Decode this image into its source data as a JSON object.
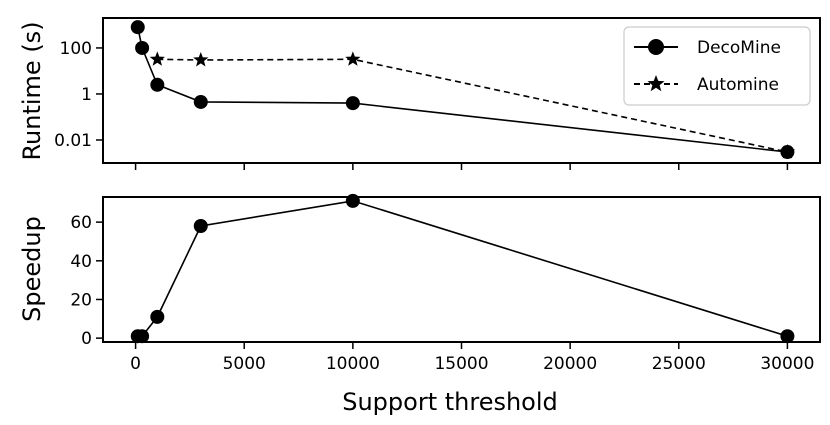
{
  "chart_data": [
    {
      "type": "line",
      "ylabel": "Runtime (s)",
      "yscale": "log",
      "ylim": [
        0.001,
        2000
      ],
      "xlim": [
        -1500,
        31500
      ],
      "y_ticks": [
        0.01,
        1,
        100
      ],
      "y_tick_labels": [
        "0.01",
        "1",
        "100"
      ],
      "grid": false,
      "legend": "top-right",
      "series": [
        {
          "name": "DecoMine",
          "marker": "circle",
          "linestyle": "solid",
          "color": "#000000",
          "x": [
            100,
            300,
            1000,
            3000,
            10000,
            30000
          ],
          "y": [
            800,
            100,
            2.5,
            0.45,
            0.4,
            0.003
          ]
        },
        {
          "name": "Automine",
          "marker": "star",
          "linestyle": "dashed",
          "color": "#000000",
          "x": [
            1000,
            3000,
            10000,
            30000
          ],
          "y": [
            32,
            30,
            32,
            0.003
          ]
        }
      ]
    },
    {
      "type": "line",
      "xlabel": "Support threshold",
      "ylabel": "Speedup",
      "ylim": [
        -2,
        73
      ],
      "xlim": [
        -1500,
        31500
      ],
      "x_ticks": [
        0,
        5000,
        10000,
        15000,
        20000,
        25000,
        30000
      ],
      "x_tick_labels": [
        "0",
        "5000",
        "10000",
        "15000",
        "20000",
        "25000",
        "30000"
      ],
      "y_ticks": [
        0,
        20,
        40,
        60
      ],
      "y_tick_labels": [
        "0",
        "20",
        "40",
        "60"
      ],
      "grid": false,
      "series": [
        {
          "marker": "circle",
          "linestyle": "solid",
          "color": "#000000",
          "x": [
            100,
            300,
            1000,
            3000,
            10000,
            30000
          ],
          "y": [
            1,
            1,
            11,
            58,
            71,
            1
          ]
        }
      ]
    }
  ]
}
